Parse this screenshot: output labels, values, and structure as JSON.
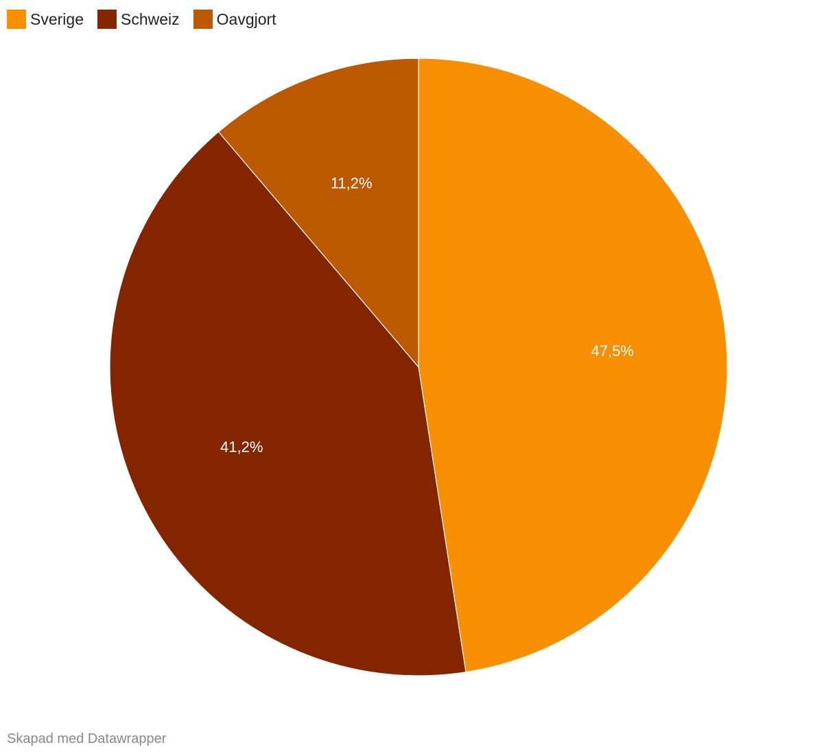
{
  "chart_data": {
    "type": "pie",
    "title": "",
    "slices": [
      {
        "name": "Sverige",
        "value": 47.5,
        "label": "47,5%",
        "color": "#F78F00"
      },
      {
        "name": "Schweiz",
        "value": 41.2,
        "label": "41,2%",
        "color": "#832600"
      },
      {
        "name": "Oavgjort",
        "value": 11.2,
        "label": "11,2%",
        "color": "#BB5800"
      }
    ],
    "start_angle": "top",
    "direction": "clockwise",
    "legend_position": "top-left"
  },
  "credit": "Skapad med Datawrapper"
}
